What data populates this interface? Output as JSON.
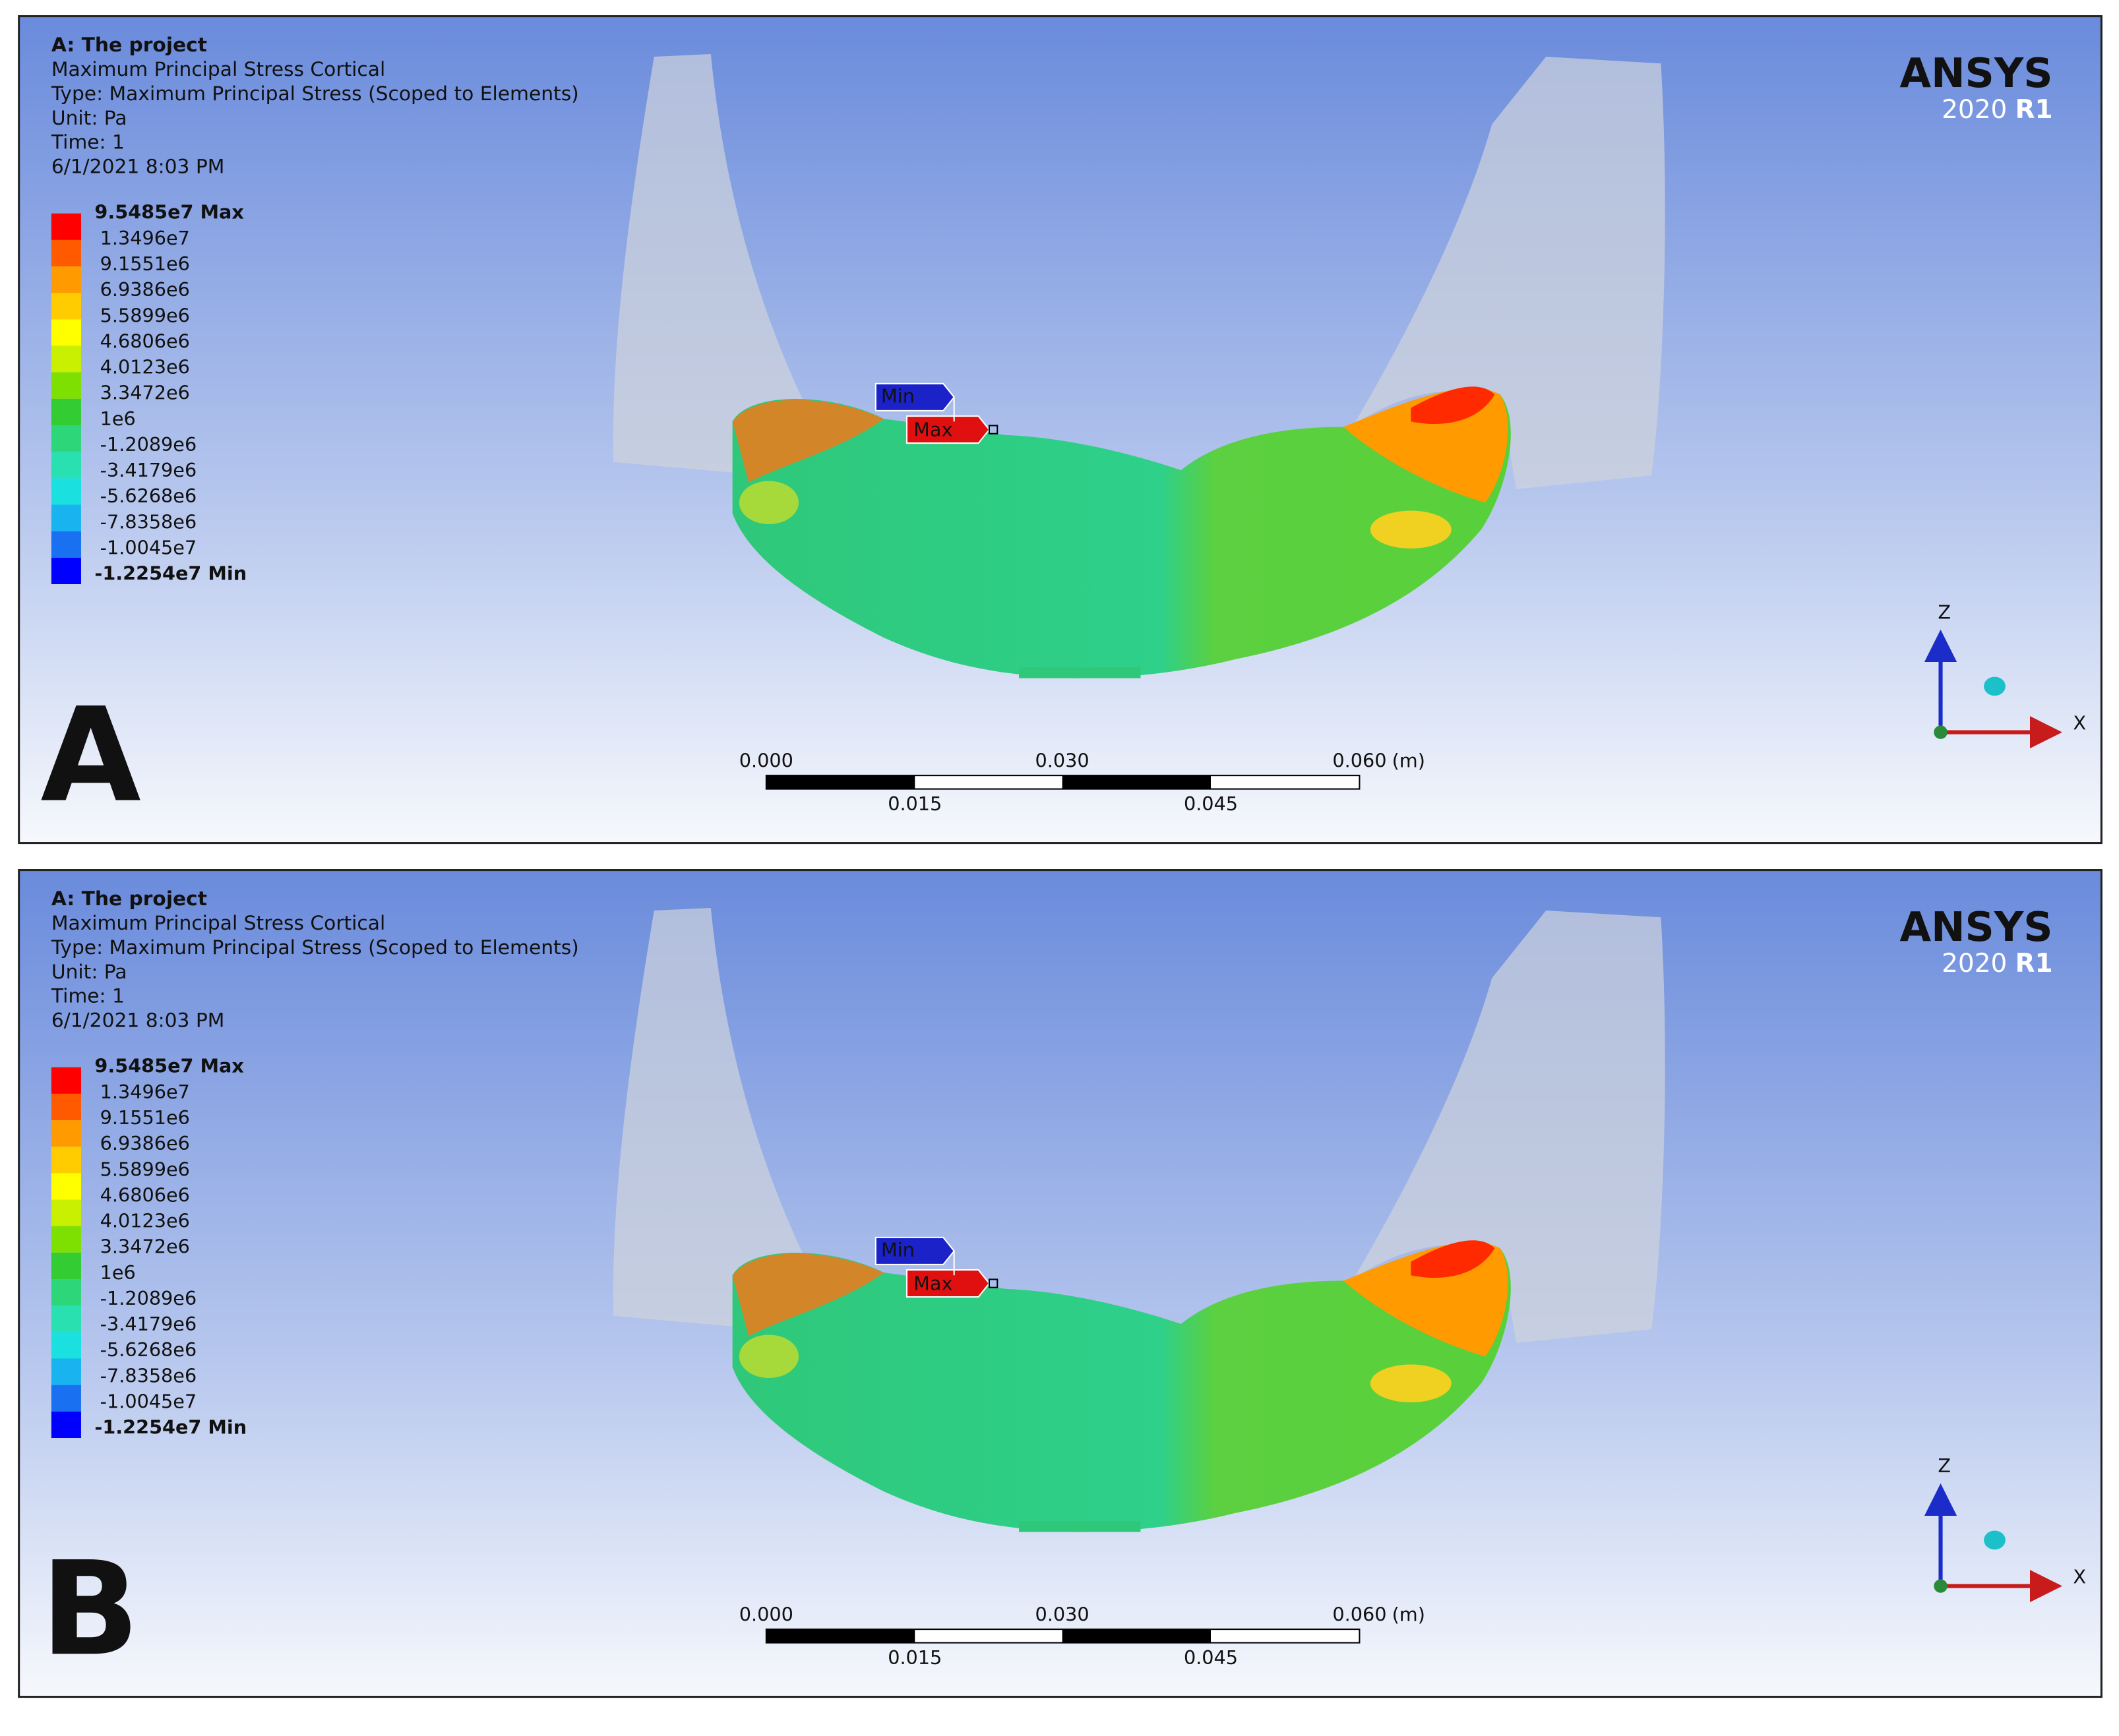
{
  "panels": [
    {
      "label": "A",
      "header": [
        "A: The project",
        "Maximum Principal Stress Cortical",
        "Type: Maximum Principal Stress (Scoped to Elements)",
        "Unit: Pa",
        "Time: 1",
        "6/1/2021 8:03 PM"
      ],
      "legend": {
        "labels": [
          "9.5485e7 Max",
          "1.3496e7",
          "9.1551e6",
          "6.9386e6",
          "5.5899e6",
          "4.6806e6",
          "4.0123e6",
          "3.3472e6",
          "1e6",
          "-1.2089e6",
          "-3.4179e6",
          "-5.6268e6",
          "-7.8358e6",
          "-1.0045e7",
          "-1.2254e7 Min"
        ],
        "colors": [
          "#ff0000",
          "#ff5a00",
          "#ff9a00",
          "#ffcc00",
          "#ffff00",
          "#c8f000",
          "#7ee000",
          "#33cc33",
          "#2ed67a",
          "#29e0b0",
          "#1ae0e0",
          "#19b4f0",
          "#1970f0",
          "#0000ff"
        ]
      },
      "logo": {
        "name": "ANSYS",
        "version": "2020",
        "release": "R1"
      },
      "markers": {
        "min": "Min",
        "max": "Max"
      },
      "axes": {
        "z": "Z",
        "x": "X"
      },
      "scale": {
        "top": [
          "0.000",
          "0.030",
          "0.060"
        ],
        "unit": "(m)",
        "bottom": [
          "0.015",
          "0.045"
        ]
      }
    },
    {
      "label": "B",
      "header": [
        "A: The project",
        "Maximum Principal Stress Cortical",
        "Type: Maximum Principal Stress (Scoped to Elements)",
        "Unit: Pa",
        "Time: 1",
        "6/1/2021 8:03 PM"
      ],
      "legend": {
        "labels": [
          "9.5485e7 Max",
          "1.3496e7",
          "9.1551e6",
          "6.9386e6",
          "5.5899e6",
          "4.6806e6",
          "4.0123e6",
          "3.3472e6",
          "1e6",
          "-1.2089e6",
          "-3.4179e6",
          "-5.6268e6",
          "-7.8358e6",
          "-1.0045e7",
          "-1.2254e7 Min"
        ],
        "colors": [
          "#ff0000",
          "#ff5a00",
          "#ff9a00",
          "#ffcc00",
          "#ffff00",
          "#c8f000",
          "#7ee000",
          "#33cc33",
          "#2ed67a",
          "#29e0b0",
          "#1ae0e0",
          "#19b4f0",
          "#1970f0",
          "#0000ff"
        ]
      },
      "logo": {
        "name": "ANSYS",
        "version": "2020",
        "release": "R1"
      },
      "markers": {
        "min": "Min",
        "max": "Max"
      },
      "axes": {
        "z": "Z",
        "x": "X"
      },
      "scale": {
        "top": [
          "0.000",
          "0.030",
          "0.060"
        ],
        "unit": "(m)",
        "bottom": [
          "0.015",
          "0.045"
        ]
      }
    }
  ]
}
